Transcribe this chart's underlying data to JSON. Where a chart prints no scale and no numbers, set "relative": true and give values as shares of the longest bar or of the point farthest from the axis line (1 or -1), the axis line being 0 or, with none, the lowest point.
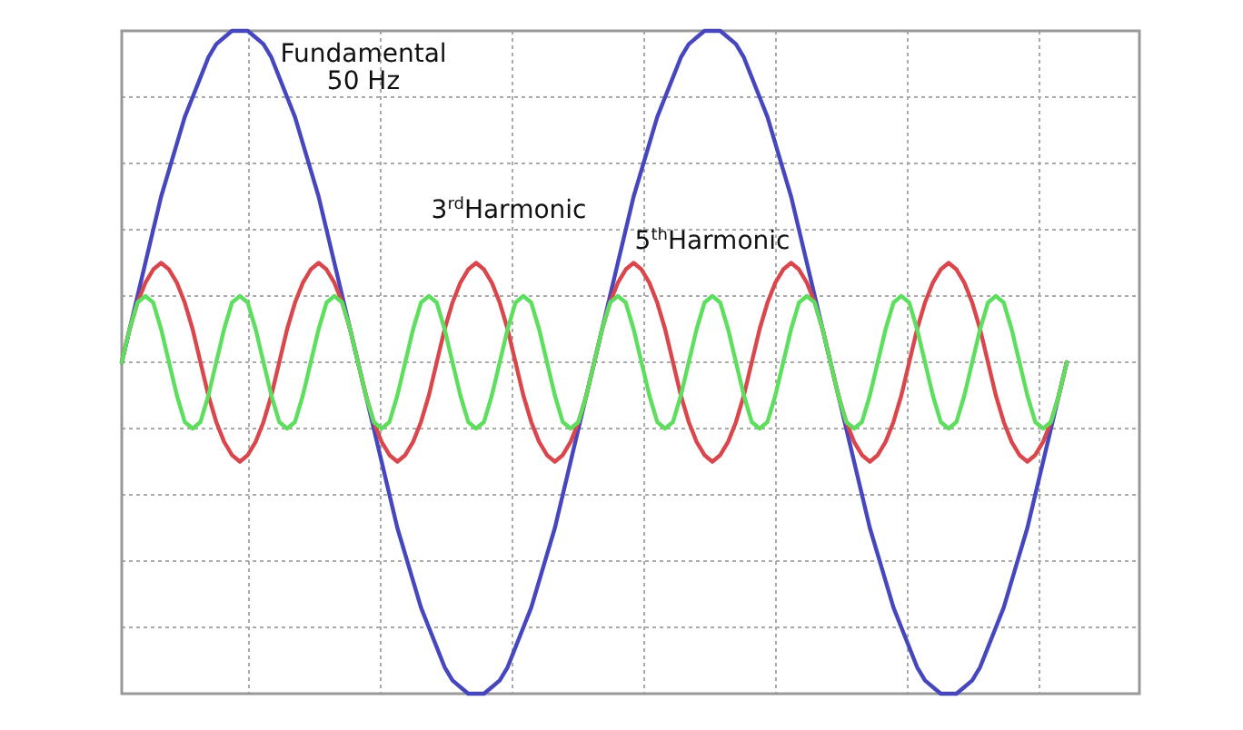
{
  "chart_data": {
    "type": "line",
    "relative": true,
    "grid": true,
    "line_style": "solid",
    "categories": [
      null,
      null,
      null,
      null,
      null,
      null,
      null,
      null,
      null,
      null,
      null,
      null,
      null,
      null,
      null,
      null,
      null,
      null,
      null,
      null,
      null,
      null,
      null,
      null,
      null,
      null,
      null,
      null,
      null,
      null,
      null,
      null,
      null,
      null,
      null,
      null,
      null,
      null,
      null,
      null,
      null,
      null,
      null,
      null,
      null,
      null,
      null,
      null,
      null,
      null,
      null,
      null,
      null,
      null,
      null,
      null,
      null,
      null,
      null,
      null,
      null,
      null,
      null,
      null,
      null,
      null,
      null,
      null,
      null,
      null,
      null,
      null,
      null,
      null,
      null,
      null,
      null,
      null,
      null,
      null,
      null,
      null,
      null,
      null,
      null,
      null,
      null,
      null,
      null,
      null,
      null,
      null,
      null,
      null,
      null,
      null,
      null,
      null,
      null,
      null,
      null,
      null,
      null,
      null,
      null,
      null,
      null,
      null,
      null,
      null,
      null,
      null,
      null,
      null,
      null,
      null,
      null,
      null,
      null,
      null,
      null
    ],
    "series": [
      {
        "color": "#4646be",
        "values": [
          0.5,
          0.55,
          0.6,
          0.65,
          0.7,
          0.75,
          0.79,
          0.83,
          0.87,
          0.9,
          0.93,
          0.96,
          0.98,
          0.99,
          1,
          1,
          1,
          0.99,
          0.98,
          0.96,
          0.93,
          0.9,
          0.87,
          0.83,
          0.79,
          0.75,
          0.7,
          0.65,
          0.6,
          0.55,
          0.5,
          0.45,
          0.4,
          0.35,
          0.3,
          0.25,
          0.21,
          0.17,
          0.13,
          0.1,
          0.07,
          0.04,
          0.02,
          0.01,
          0,
          0,
          0,
          0.01,
          0.02,
          0.04,
          0.07,
          0.1,
          0.13,
          0.17,
          0.21,
          0.25,
          0.3,
          0.35,
          0.4,
          0.45,
          0.5,
          0.55,
          0.6,
          0.65,
          0.7,
          0.75,
          0.79,
          0.83,
          0.87,
          0.9,
          0.93,
          0.96,
          0.98,
          0.99,
          1,
          1,
          1,
          0.99,
          0.98,
          0.96,
          0.93,
          0.9,
          0.87,
          0.83,
          0.79,
          0.75,
          0.7,
          0.65,
          0.6,
          0.55,
          0.5,
          0.45,
          0.4,
          0.35,
          0.3,
          0.25,
          0.21,
          0.17,
          0.13,
          0.1,
          0.07,
          0.04,
          0.02,
          0.01,
          0,
          0,
          0,
          0.01,
          0.02,
          0.04,
          0.07,
          0.1,
          0.13,
          0.17,
          0.21,
          0.25,
          0.3,
          0.35,
          0.4,
          0.45,
          0.5
        ]
      },
      {
        "color": "#d9464b",
        "values": [
          0.5,
          0.55,
          0.59,
          0.62,
          0.64,
          0.65,
          0.64,
          0.62,
          0.59,
          0.55,
          0.5,
          0.45,
          0.41,
          0.38,
          0.36,
          0.35,
          0.36,
          0.38,
          0.41,
          0.45,
          0.5,
          0.55,
          0.59,
          0.62,
          0.64,
          0.65,
          0.64,
          0.62,
          0.59,
          0.55,
          0.5,
          0.45,
          0.41,
          0.38,
          0.36,
          0.35,
          0.36,
          0.38,
          0.41,
          0.45,
          0.5,
          0.55,
          0.59,
          0.62,
          0.64,
          0.65,
          0.64,
          0.62,
          0.59,
          0.55,
          0.5,
          0.45,
          0.41,
          0.38,
          0.36,
          0.35,
          0.36,
          0.38,
          0.41,
          0.45,
          0.5,
          0.55,
          0.59,
          0.62,
          0.64,
          0.65,
          0.64,
          0.62,
          0.59,
          0.55,
          0.5,
          0.45,
          0.41,
          0.38,
          0.36,
          0.35,
          0.36,
          0.38,
          0.41,
          0.45,
          0.5,
          0.55,
          0.59,
          0.62,
          0.64,
          0.65,
          0.64,
          0.62,
          0.59,
          0.55,
          0.5,
          0.45,
          0.41,
          0.38,
          0.36,
          0.35,
          0.36,
          0.38,
          0.41,
          0.45,
          0.5,
          0.55,
          0.59,
          0.62,
          0.64,
          0.65,
          0.64,
          0.62,
          0.59,
          0.55,
          0.5,
          0.45,
          0.41,
          0.38,
          0.36,
          0.35,
          0.36,
          0.38,
          0.41,
          0.45,
          0.5
        ]
      },
      {
        "color": "#5ede5e",
        "values": [
          0.5,
          0.55,
          0.59,
          0.6,
          0.59,
          0.55,
          0.5,
          0.45,
          0.41,
          0.4,
          0.41,
          0.45,
          0.5,
          0.55,
          0.59,
          0.6,
          0.59,
          0.55,
          0.5,
          0.45,
          0.41,
          0.4,
          0.41,
          0.45,
          0.5,
          0.55,
          0.59,
          0.6,
          0.59,
          0.55,
          0.5,
          0.45,
          0.41,
          0.4,
          0.41,
          0.45,
          0.5,
          0.55,
          0.59,
          0.6,
          0.59,
          0.55,
          0.5,
          0.45,
          0.41,
          0.4,
          0.41,
          0.45,
          0.5,
          0.55,
          0.59,
          0.6,
          0.59,
          0.55,
          0.5,
          0.45,
          0.41,
          0.4,
          0.41,
          0.45,
          0.5,
          0.55,
          0.59,
          0.6,
          0.59,
          0.55,
          0.5,
          0.45,
          0.41,
          0.4,
          0.41,
          0.45,
          0.5,
          0.55,
          0.59,
          0.6,
          0.59,
          0.55,
          0.5,
          0.45,
          0.41,
          0.4,
          0.41,
          0.45,
          0.5,
          0.55,
          0.59,
          0.6,
          0.59,
          0.55,
          0.5,
          0.45,
          0.41,
          0.4,
          0.41,
          0.45,
          0.5,
          0.55,
          0.59,
          0.6,
          0.59,
          0.55,
          0.5,
          0.45,
          0.41,
          0.4,
          0.41,
          0.45,
          0.5,
          0.55,
          0.59,
          0.6,
          0.59,
          0.55,
          0.5,
          0.45,
          0.41,
          0.4,
          0.41,
          0.45,
          0.5
        ]
      }
    ],
    "annotations": [
      "Fundamental\n50 Hz",
      "3$^{rd}$Harmonic",
      "5$^{th}$Harmonic"
    ]
  }
}
